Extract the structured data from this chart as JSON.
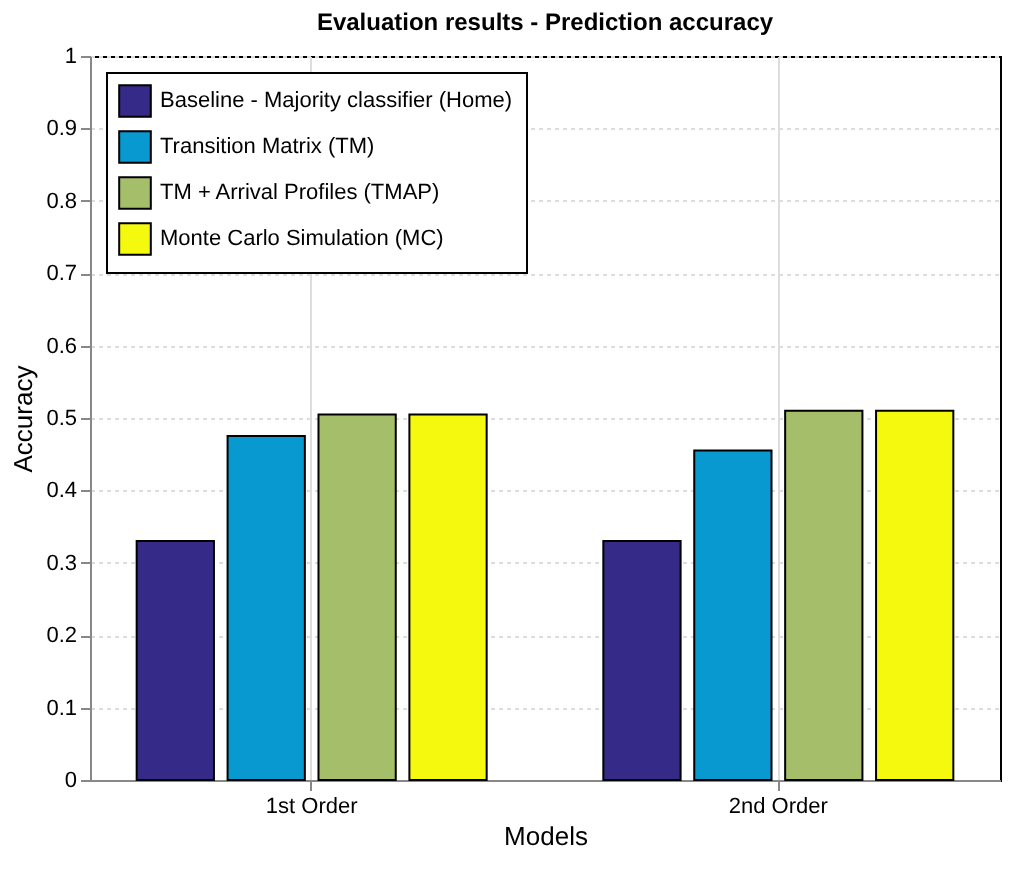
{
  "chart_data": {
    "type": "bar",
    "title": "Evaluation results - Prediction accuracy",
    "xlabel": "Models",
    "ylabel": "Accuracy",
    "categories": [
      "1st Order",
      "2nd Order"
    ],
    "series": [
      {
        "name": "Baseline - Majority classifier (Home)",
        "color": "#352a87",
        "values": [
          0.33,
          0.33
        ]
      },
      {
        "name": "Transition Matrix (TM)",
        "color": "#0899d1",
        "values": [
          0.475,
          0.455
        ]
      },
      {
        "name": "TM + Arrival Profiles (TMAP)",
        "color": "#a5be6a",
        "values": [
          0.505,
          0.51
        ]
      },
      {
        "name": "Monte Carlo Simulation (MC)",
        "color": "#f5f90e",
        "values": [
          0.505,
          0.51
        ]
      }
    ],
    "ylim": [
      0,
      1
    ],
    "yticks": [
      0,
      0.1,
      0.2,
      0.3,
      0.4,
      0.5,
      0.6,
      0.7,
      0.8,
      0.9,
      1
    ],
    "grid": true,
    "legend": "top left"
  }
}
